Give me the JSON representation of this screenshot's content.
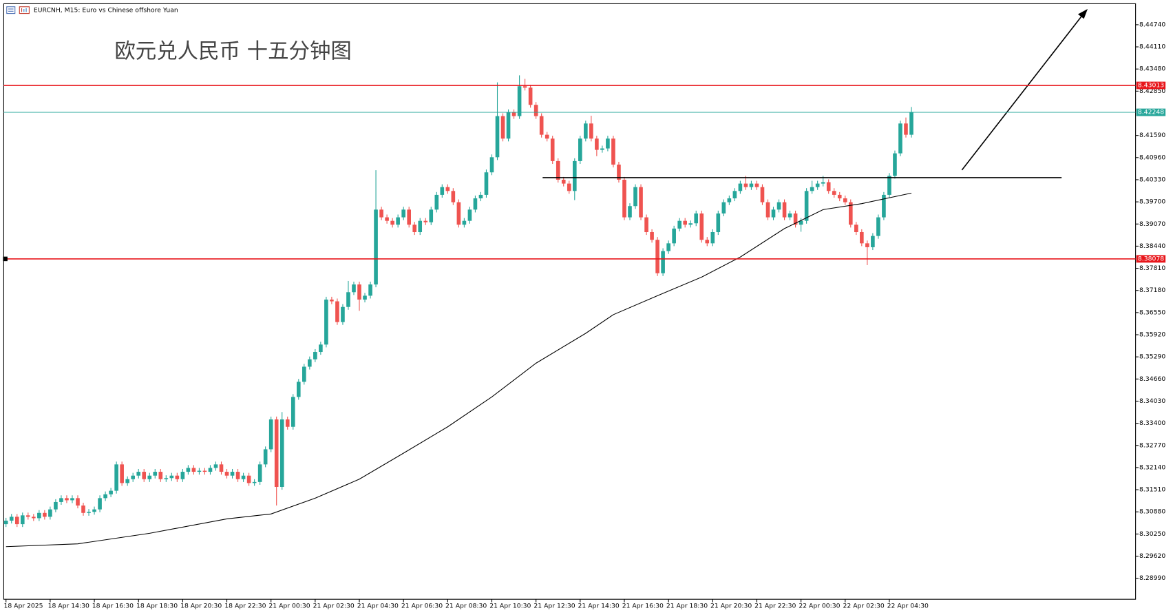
{
  "chart_data": {
    "type": "candlestick",
    "symbol_info": "EURCNH, M15:  Euro vs Chinese offshore Yuan",
    "title": "欧元兑人民币 十五分钟图",
    "up_color": "#26a69a",
    "down_color": "#ef5350",
    "xlim": [
      -0.41,
      204.6
    ],
    "xticks": [
      {
        "value": 0,
        "label": "18 Apr 2025"
      },
      {
        "value": 8,
        "label": "18 Apr 14:30"
      },
      {
        "value": 16,
        "label": "18 Apr 16:30"
      },
      {
        "value": 24,
        "label": "18 Apr 18:30"
      },
      {
        "value": 32,
        "label": "18 Apr 20:30"
      },
      {
        "value": 40,
        "label": "18 Apr 22:30"
      },
      {
        "value": 48,
        "label": "21 Apr 00:30"
      },
      {
        "value": 56,
        "label": "21 Apr 02:30"
      },
      {
        "value": 64,
        "label": "21 Apr 04:30"
      },
      {
        "value": 72,
        "label": "21 Apr 06:30"
      },
      {
        "value": 80,
        "label": "21 Apr 08:30"
      },
      {
        "value": 88,
        "label": "21 Apr 10:30"
      },
      {
        "value": 96,
        "label": "21 Apr 12:30"
      },
      {
        "value": 104,
        "label": "21 Apr 14:30"
      },
      {
        "value": 112,
        "label": "21 Apr 16:30"
      },
      {
        "value": 120,
        "label": "21 Apr 18:30"
      },
      {
        "value": 128,
        "label": "21 Apr 20:30"
      },
      {
        "value": 136,
        "label": "21 Apr 22:30"
      },
      {
        "value": 144,
        "label": "22 Apr 00:30"
      },
      {
        "value": 152,
        "label": "22 Apr 02:30"
      },
      {
        "value": 160,
        "label": "22 Apr 04:30"
      }
    ],
    "ylim": [
      8.28393,
      8.45337
    ],
    "yticks": [
      {
        "value": 8.4474,
        "label": "8.44740"
      },
      {
        "value": 8.4411,
        "label": "8.44110"
      },
      {
        "value": 8.4348,
        "label": "8.43480"
      },
      {
        "value": 8.4285,
        "label": "8.42850"
      },
      {
        "value": 8.4159,
        "label": "8.41590"
      },
      {
        "value": 8.4096,
        "label": "8.40960"
      },
      {
        "value": 8.4033,
        "label": "8.40330"
      },
      {
        "value": 8.397,
        "label": "8.39700"
      },
      {
        "value": 8.3907,
        "label": "8.39070"
      },
      {
        "value": 8.3844,
        "label": "8.38440"
      },
      {
        "value": 8.3781,
        "label": "8.37810"
      },
      {
        "value": 8.3718,
        "label": "8.37180"
      },
      {
        "value": 8.3655,
        "label": "8.36550"
      },
      {
        "value": 8.3592,
        "label": "8.35920"
      },
      {
        "value": 8.3529,
        "label": "8.35290"
      },
      {
        "value": 8.3466,
        "label": "8.34660"
      },
      {
        "value": 8.3403,
        "label": "8.34030"
      },
      {
        "value": 8.334,
        "label": "8.33400"
      },
      {
        "value": 8.3277,
        "label": "8.32770"
      },
      {
        "value": 8.3214,
        "label": "8.32140"
      },
      {
        "value": 8.3151,
        "label": "8.31510"
      },
      {
        "value": 8.3088,
        "label": "8.30880"
      },
      {
        "value": 8.3025,
        "label": "8.30250"
      },
      {
        "value": 8.2962,
        "label": "8.29620"
      },
      {
        "value": 8.2899,
        "label": "8.28990"
      }
    ],
    "open": [
      8.3053,
      8.3063,
      8.3074,
      8.3053,
      8.3078,
      8.3074,
      8.307,
      8.3085,
      8.3074,
      8.3095,
      8.3116,
      8.3127,
      8.3121,
      8.3127,
      8.3106,
      8.3085,
      8.3088,
      8.3095,
      8.3127,
      8.3138,
      8.3148,
      8.3223,
      8.317,
      8.3181,
      8.3191,
      8.3202,
      8.3181,
      8.3191,
      8.3202,
      8.3181,
      8.3184,
      8.3191,
      8.3181,
      8.3202,
      8.3213,
      8.3202,
      8.3205,
      8.3202,
      8.3213,
      8.3223,
      8.3202,
      8.3191,
      8.3202,
      8.3181,
      8.3191,
      8.317,
      8.3173,
      8.3223,
      8.3266,
      8.3351,
      8.3159,
      8.3351,
      8.333,
      8.3415,
      8.3458,
      8.3501,
      8.3522,
      8.3543,
      8.3564,
      8.3692,
      8.3687,
      8.3628,
      8.3671,
      8.3713,
      8.3735,
      8.3692,
      8.3703,
      8.3735,
      8.3948,
      8.3926,
      8.3916,
      8.3905,
      8.3926,
      8.3948,
      8.3905,
      8.3884,
      8.3916,
      8.3912,
      8.3948,
      8.399,
      8.4012,
      8.4001,
      8.3969,
      8.3905,
      8.3916,
      8.3948,
      8.398,
      8.399,
      8.4054,
      8.4097,
      8.4214,
      8.415,
      8.4225,
      8.4214,
      8.4299,
      8.4295,
      8.4246,
      8.4214,
      8.4161,
      8.415,
      8.4086,
      8.4033,
      8.4022,
      8.4001,
      8.4086,
      8.415,
      8.4193,
      8.415,
      8.4118,
      8.4122,
      8.415,
      8.4076,
      8.4033,
      8.3926,
      8.3958,
      8.4012,
      8.3926,
      8.3884,
      8.3862,
      8.3767,
      8.383,
      8.3852,
      8.3894,
      8.3916,
      8.3905,
      8.3909,
      8.3937,
      8.3862,
      8.3852,
      8.3884,
      8.3937,
      8.3969,
      8.398,
      8.4001,
      8.4022,
      8.4012,
      8.4022,
      8.4012,
      8.3969,
      8.3926,
      8.3948,
      8.3969,
      8.3926,
      8.3937,
      8.3905,
      8.3916,
      8.4001,
      8.4012,
      8.4022,
      8.4026,
      8.4001,
      8.399,
      8.398,
      8.3969,
      8.3905,
      8.3884,
      8.3852,
      8.3841,
      8.3873,
      8.3926,
      8.399,
      8.4044,
      8.4108,
      8.4193,
      8.4161
    ],
    "high": [
      8.3071,
      8.3082,
      8.3082,
      8.3086,
      8.3086,
      8.3082,
      8.3093,
      8.3093,
      8.3103,
      8.3124,
      8.3135,
      8.3135,
      8.3135,
      8.3135,
      8.3114,
      8.3096,
      8.3103,
      8.3135,
      8.3146,
      8.3156,
      8.3231,
      8.3231,
      8.3189,
      8.3199,
      8.321,
      8.321,
      8.3199,
      8.321,
      8.321,
      8.3192,
      8.3199,
      8.3199,
      8.321,
      8.3221,
      8.3221,
      8.3213,
      8.3213,
      8.3221,
      8.3231,
      8.3231,
      8.321,
      8.321,
      8.321,
      8.3199,
      8.3199,
      8.3181,
      8.3231,
      8.3274,
      8.3359,
      8.3359,
      8.3372,
      8.3359,
      8.3423,
      8.3466,
      8.3509,
      8.353,
      8.3551,
      8.3572,
      8.37,
      8.37,
      8.3695,
      8.3679,
      8.3745,
      8.3743,
      8.3743,
      8.3711,
      8.3743,
      8.406,
      8.3956,
      8.3934,
      8.3924,
      8.3934,
      8.3956,
      8.3956,
      8.3913,
      8.3924,
      8.3924,
      8.3956,
      8.3998,
      8.402,
      8.402,
      8.4009,
      8.3977,
      8.3924,
      8.3956,
      8.3988,
      8.3998,
      8.4062,
      8.4105,
      8.431,
      8.4222,
      8.4233,
      8.4233,
      8.433,
      8.432,
      8.4303,
      8.4254,
      8.4222,
      8.4169,
      8.4158,
      8.4094,
      8.4041,
      8.403,
      8.4094,
      8.4158,
      8.4201,
      8.4215,
      8.4158,
      8.413,
      8.4158,
      8.4158,
      8.4084,
      8.4041,
      8.3966,
      8.402,
      8.402,
      8.3934,
      8.3892,
      8.387,
      8.3838,
      8.386,
      8.3902,
      8.3924,
      8.3924,
      8.3917,
      8.3945,
      8.3945,
      8.387,
      8.3892,
      8.3945,
      8.3977,
      8.3988,
      8.4009,
      8.403,
      8.4044,
      8.403,
      8.403,
      8.402,
      8.3977,
      8.3956,
      8.3977,
      8.3977,
      8.3945,
      8.3945,
      8.3924,
      8.4009,
      8.403,
      8.403,
      8.4044,
      8.4034,
      8.4009,
      8.3998,
      8.3988,
      8.3977,
      8.3913,
      8.3892,
      8.386,
      8.3881,
      8.3934,
      8.3998,
      8.4052,
      8.4116,
      8.4201,
      8.421,
      8.424
    ],
    "low": [
      8.3045,
      8.3055,
      8.3045,
      8.3045,
      8.3066,
      8.3062,
      8.3062,
      8.3066,
      8.3066,
      8.3087,
      8.3108,
      8.3113,
      8.3113,
      8.3098,
      8.3077,
      8.3077,
      8.308,
      8.3087,
      8.3119,
      8.313,
      8.314,
      8.3162,
      8.3162,
      8.3173,
      8.3183,
      8.3173,
      8.3173,
      8.3183,
      8.3173,
      8.3173,
      8.3176,
      8.3173,
      8.3173,
      8.3194,
      8.3194,
      8.3194,
      8.3194,
      8.3194,
      8.3205,
      8.3194,
      8.3183,
      8.3183,
      8.3173,
      8.3173,
      8.3162,
      8.3162,
      8.3165,
      8.3215,
      8.3258,
      8.3106,
      8.3151,
      8.3322,
      8.3322,
      8.3407,
      8.345,
      8.3493,
      8.3514,
      8.3535,
      8.3556,
      8.3679,
      8.362,
      8.362,
      8.3663,
      8.3705,
      8.366,
      8.3684,
      8.3695,
      8.3727,
      8.3918,
      8.3908,
      8.3897,
      8.3897,
      8.3918,
      8.3897,
      8.3876,
      8.3876,
      8.3904,
      8.3904,
      8.394,
      8.3982,
      8.3993,
      8.3961,
      8.3897,
      8.3897,
      8.3908,
      8.394,
      8.3972,
      8.3982,
      8.4046,
      8.4089,
      8.4142,
      8.4142,
      8.4206,
      8.4206,
      8.4287,
      8.4238,
      8.4206,
      8.4153,
      8.4142,
      8.4078,
      8.4025,
      8.4014,
      8.3993,
      8.3975,
      8.4078,
      8.4142,
      8.4142,
      8.41,
      8.411,
      8.4114,
      8.4068,
      8.4025,
      8.3918,
      8.3918,
      8.395,
      8.3918,
      8.3876,
      8.3854,
      8.3759,
      8.3759,
      8.3822,
      8.3844,
      8.3886,
      8.3897,
      8.3897,
      8.3901,
      8.3854,
      8.3844,
      8.3844,
      8.3876,
      8.3929,
      8.3961,
      8.3972,
      8.3993,
      8.4004,
      8.4004,
      8.4004,
      8.3961,
      8.3918,
      8.3918,
      8.394,
      8.3918,
      8.3918,
      8.3897,
      8.3885,
      8.3908,
      8.3993,
      8.4004,
      8.4014,
      8.3993,
      8.3982,
      8.3972,
      8.3961,
      8.3897,
      8.3876,
      8.3844,
      8.379,
      8.3833,
      8.3865,
      8.3918,
      8.3982,
      8.4036,
      8.41,
      8.4153,
      8.4153
    ],
    "close": [
      8.3063,
      8.3074,
      8.3053,
      8.3078,
      8.3074,
      8.307,
      8.3085,
      8.3074,
      8.3095,
      8.3116,
      8.3127,
      8.3121,
      8.3127,
      8.3106,
      8.3085,
      8.3088,
      8.3095,
      8.3127,
      8.3138,
      8.3148,
      8.3223,
      8.317,
      8.3181,
      8.3191,
      8.3202,
      8.3181,
      8.3191,
      8.3202,
      8.3181,
      8.3184,
      8.3191,
      8.3181,
      8.3202,
      8.3213,
      8.3202,
      8.3205,
      8.3202,
      8.3213,
      8.3223,
      8.3202,
      8.3191,
      8.3202,
      8.3181,
      8.3191,
      8.317,
      8.3173,
      8.3223,
      8.3266,
      8.3351,
      8.3159,
      8.3351,
      8.333,
      8.3415,
      8.3458,
      8.3501,
      8.3522,
      8.3543,
      8.3564,
      8.3692,
      8.3687,
      8.3628,
      8.3671,
      8.3713,
      8.3735,
      8.3692,
      8.3703,
      8.3735,
      8.3948,
      8.3926,
      8.3916,
      8.3905,
      8.3926,
      8.3948,
      8.3905,
      8.3884,
      8.3916,
      8.3912,
      8.3948,
      8.399,
      8.4012,
      8.4001,
      8.3969,
      8.3905,
      8.3916,
      8.3948,
      8.398,
      8.399,
      8.4054,
      8.4097,
      8.4214,
      8.415,
      8.4225,
      8.4214,
      8.4299,
      8.4295,
      8.4246,
      8.4214,
      8.4161,
      8.415,
      8.4086,
      8.4033,
      8.4022,
      8.4001,
      8.4086,
      8.415,
      8.4193,
      8.415,
      8.4118,
      8.4122,
      8.415,
      8.4076,
      8.4033,
      8.3926,
      8.3958,
      8.4012,
      8.3926,
      8.3884,
      8.3862,
      8.3767,
      8.383,
      8.3852,
      8.3894,
      8.3916,
      8.3905,
      8.3909,
      8.3937,
      8.3862,
      8.3852,
      8.3884,
      8.3937,
      8.3969,
      8.398,
      8.4001,
      8.4022,
      8.4012,
      8.4022,
      8.4012,
      8.3969,
      8.3926,
      8.3948,
      8.3969,
      8.3926,
      8.3937,
      8.3905,
      8.3916,
      8.4001,
      8.4012,
      8.4022,
      8.4026,
      8.4001,
      8.399,
      8.398,
      8.3969,
      8.3905,
      8.3884,
      8.3852,
      8.3841,
      8.3873,
      8.3926,
      8.399,
      8.4044,
      8.4108,
      8.4193,
      8.4161,
      8.4225
    ],
    "overlays": [
      {
        "color": "#000000",
        "x": [
          0,
          13,
          26,
          40,
          48,
          56,
          64,
          72,
          80,
          88,
          96,
          105,
          110,
          118,
          126,
          133,
          141,
          148,
          155,
          164
        ],
        "values": [
          8.2989,
          8.2997,
          8.3027,
          8.3068,
          8.3082,
          8.3127,
          8.3181,
          8.3255,
          8.333,
          8.3415,
          8.3511,
          8.3596,
          8.3649,
          8.3703,
          8.3756,
          8.3813,
          8.3894,
          8.3948,
          8.3965,
          8.3995
        ]
      }
    ],
    "levels": [
      {
        "value": 8.43013,
        "color": "#e8161b",
        "labeled": true
      },
      {
        "value": 8.38078,
        "color": "#e8161b",
        "labeled": true
      },
      {
        "value": 8.42248,
        "color": "#26a69a",
        "labeled": true
      },
      {
        "value": 8.4039,
        "color": "#000000",
        "labeled": false
      }
    ]
  }
}
